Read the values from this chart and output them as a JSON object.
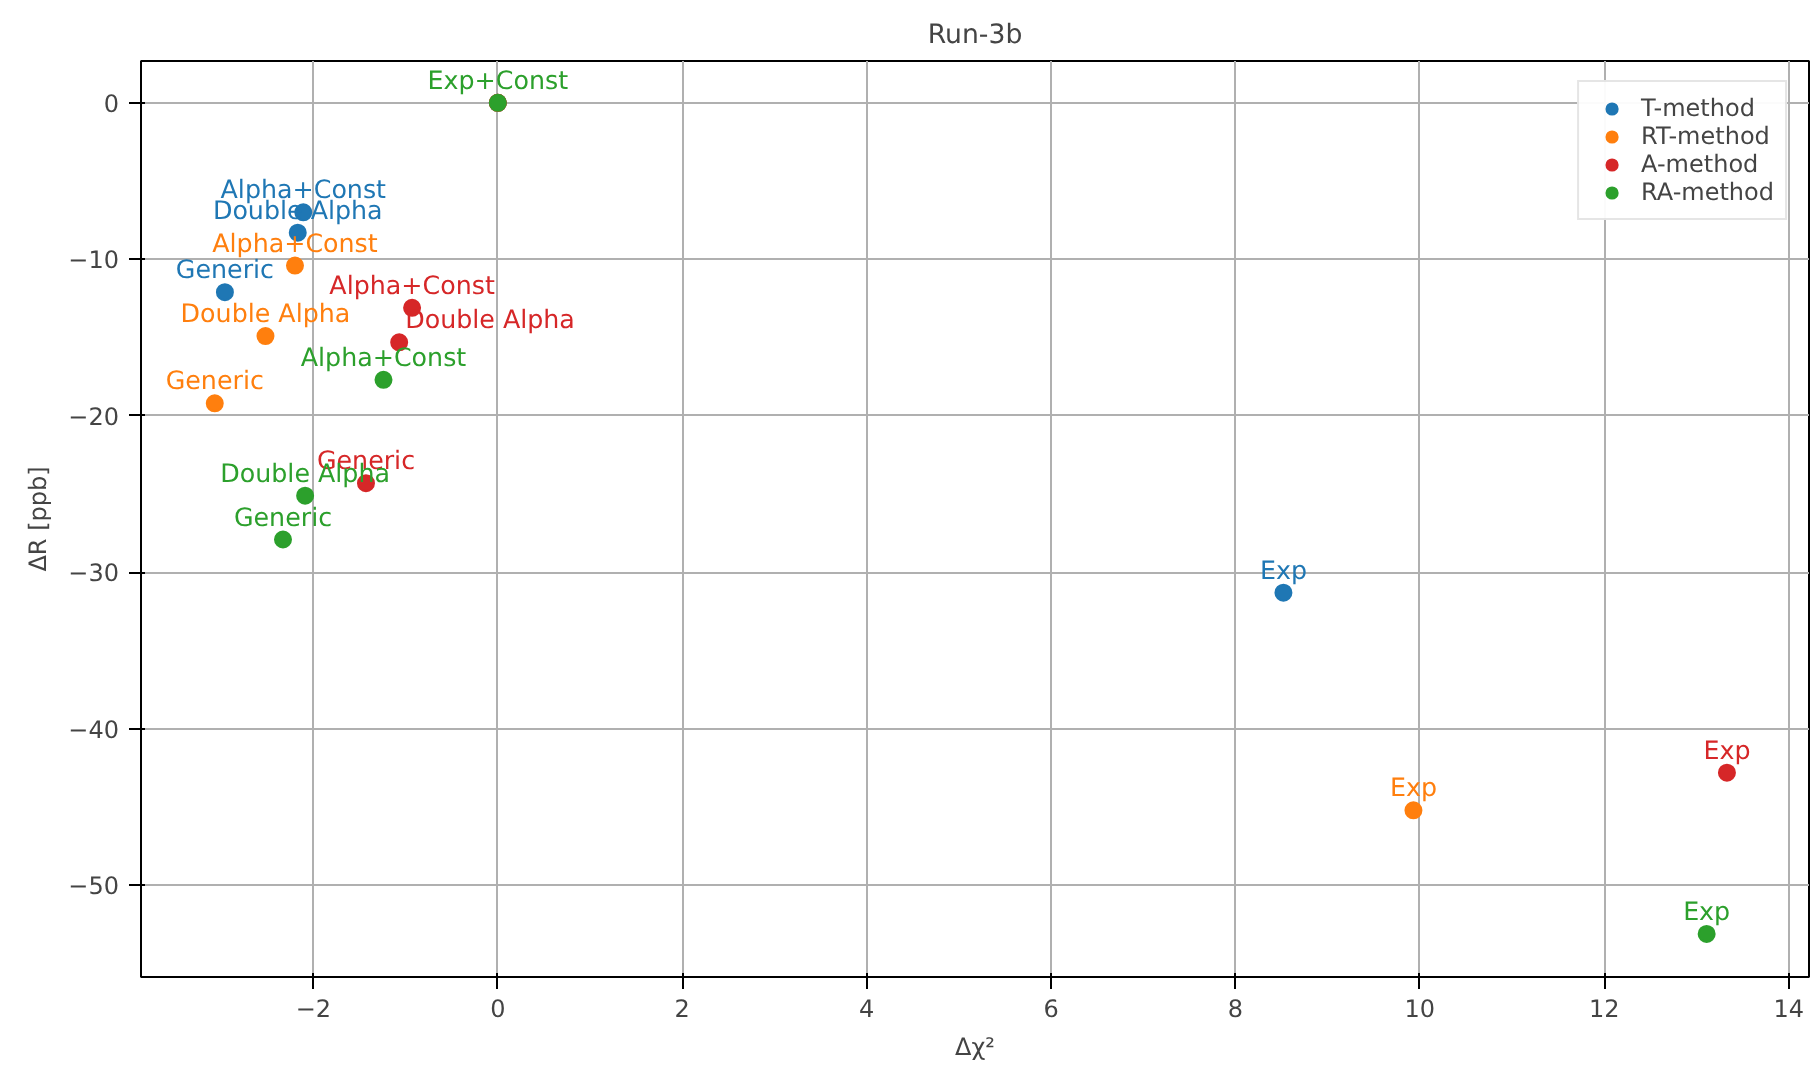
{
  "chart_data": {
    "type": "scatter",
    "title": "Run-3b",
    "xlabel": "Δχ²",
    "ylabel": "ΔR [ppb]",
    "xlim": [
      -3.87,
      14.22
    ],
    "ylim": [
      -55.85,
      2.67
    ],
    "xticks": [
      -2,
      0,
      2,
      4,
      6,
      8,
      10,
      12,
      14
    ],
    "yticks": [
      -50,
      -40,
      -30,
      -20,
      -10,
      0
    ],
    "grid": true,
    "legend": "top right",
    "marker": "circle",
    "series": [
      {
        "name": "T-method",
        "color": "#1f77b4",
        "x": [
          -2.96,
          -2.17,
          -2.11,
          8.52,
          0
        ],
        "values": [
          -12.1,
          -8.3,
          -7.0,
          -31.3,
          0
        ]
      },
      {
        "name": "RT-method",
        "color": "#ff7f0e",
        "x": [
          -3.07,
          -2.52,
          -2.2,
          9.93,
          0
        ],
        "values": [
          -19.2,
          -14.9,
          -10.4,
          -45.2,
          0
        ]
      },
      {
        "name": "A-method",
        "color": "#d62728",
        "x": [
          -1.43,
          -1.07,
          -0.93,
          13.33,
          0
        ],
        "values": [
          -24.3,
          -15.3,
          -13.1,
          -42.8,
          0
        ]
      },
      {
        "name": "RA-method",
        "color": "#2ca02c",
        "x": [
          -2.33,
          -2.09,
          -1.24,
          13.11,
          0
        ],
        "values": [
          -27.9,
          -25.1,
          -17.7,
          -53.1,
          0
        ]
      }
    ],
    "annotations": [
      {
        "text": "Generic",
        "x": -2.96,
        "y": -12.1
      },
      {
        "text": "Double Alpha",
        "x": -2.17,
        "y": -8.3
      },
      {
        "text": "Alpha+Const",
        "x": -2.11,
        "y": -7.0
      },
      {
        "text": "Exp",
        "x": 8.52,
        "y": -31.3
      },
      {
        "text": "Generic",
        "x": -3.07,
        "y": -19.2
      },
      {
        "text": "Double Alpha",
        "x": -2.52,
        "y": -14.9
      },
      {
        "text": "Alpha+Const",
        "x": -2.2,
        "y": -10.4
      },
      {
        "text": "Exp",
        "x": 9.93,
        "y": -45.2
      },
      {
        "text": "Generic",
        "x": -1.43,
        "y": -24.3
      },
      {
        "text": "Double Alpha",
        "x": -1.07,
        "y": -15.3
      },
      {
        "text": "Alpha+Const",
        "x": -0.93,
        "y": -13.1
      },
      {
        "text": "Exp",
        "x": 13.33,
        "y": -42.8
      },
      {
        "text": "Generic",
        "x": -2.33,
        "y": -27.9
      },
      {
        "text": "Double Alpha",
        "x": -2.09,
        "y": -25.1
      },
      {
        "text": "Alpha+Const",
        "x": -1.24,
        "y": -17.7
      },
      {
        "text": "Exp",
        "x": 13.11,
        "y": -53.1
      },
      {
        "text": "Exp+Const",
        "x": 0,
        "y": 0
      }
    ]
  }
}
